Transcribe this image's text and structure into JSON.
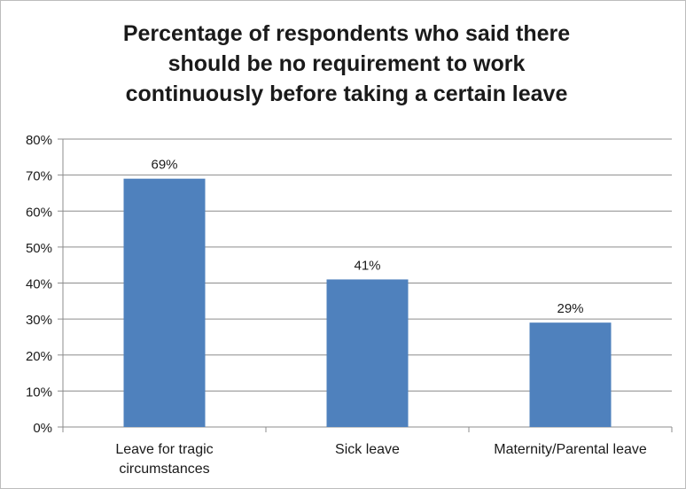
{
  "chart_data": {
    "type": "bar",
    "title_lines": [
      "Percentage of respondents who said there",
      "should be no requirement to work",
      "continuously before taking a certain leave"
    ],
    "categories": [
      [
        "Leave for tragic",
        "circumstances"
      ],
      [
        "Sick leave"
      ],
      [
        "Maternity/Parental leave"
      ]
    ],
    "values": [
      69,
      41,
      29
    ],
    "data_labels": [
      "69%",
      "41%",
      "29%"
    ],
    "y_ticks": [
      0,
      10,
      20,
      30,
      40,
      50,
      60,
      70,
      80
    ],
    "y_tick_labels": [
      "0%",
      "10%",
      "20%",
      "30%",
      "40%",
      "50%",
      "60%",
      "70%",
      "80%"
    ],
    "ylim": [
      0,
      80
    ],
    "grid": true,
    "legend": "none",
    "colors": {
      "bar": "#4f81bd",
      "grid": "#8c8c8c",
      "axis": "#8c8c8c",
      "text": "#1a1a1a"
    }
  }
}
